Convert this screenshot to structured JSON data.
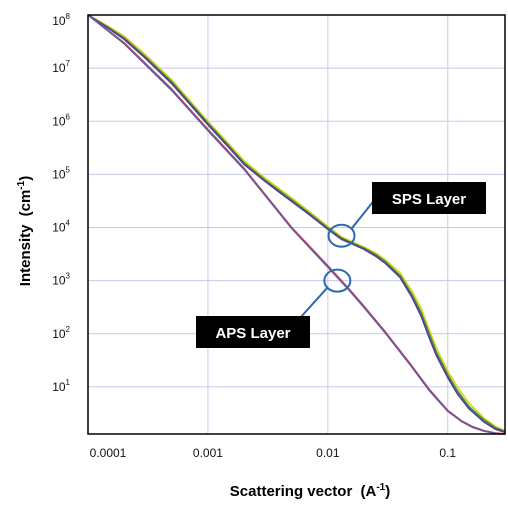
{
  "chart_data": {
    "type": "line",
    "title": "",
    "xlabel": "Scattering vector",
    "xlabel_unit_base": "(A",
    "xlabel_unit_exp": "-1",
    "xlabel_unit_close": ")",
    "ylabel": "Intensity",
    "ylabel_unit_base": "(cm",
    "ylabel_unit_exp": "-1",
    "ylabel_unit_close": ")",
    "xscale": "log",
    "yscale": "log",
    "xlim": [
      0.0001,
      0.3
    ],
    "ylim": [
      1.3,
      100000000
    ],
    "grid": true,
    "x_ticks": [
      "0.0001",
      "0.001",
      "0.01",
      "0.1"
    ],
    "y_ticks": [
      {
        "base": "10",
        "exp": "8"
      },
      {
        "base": "10",
        "exp": "7"
      },
      {
        "base": "10",
        "exp": "6"
      },
      {
        "base": "10",
        "exp": "5"
      },
      {
        "base": "10",
        "exp": "4"
      },
      {
        "base": "10",
        "exp": "3"
      },
      {
        "base": "10",
        "exp": "2"
      },
      {
        "base": "10",
        "exp": "1"
      }
    ],
    "series": [
      {
        "color": "#e8d21c",
        "x": [
          0.0001,
          0.00015,
          0.0002,
          0.0003,
          0.0005,
          0.0007,
          0.001,
          0.0015,
          0.002,
          0.003,
          0.004,
          0.005,
          0.007,
          0.01,
          0.013,
          0.016,
          0.02,
          0.025,
          0.03,
          0.04,
          0.05,
          0.06,
          0.07,
          0.08,
          0.1,
          0.12,
          0.15,
          0.2,
          0.25,
          0.3
        ],
        "y": [
          100000000,
          60000000,
          40000000,
          18000000,
          6000000,
          2500000,
          1000000,
          370000,
          180000,
          85000,
          52000,
          36000,
          20000,
          10500,
          6700,
          5400,
          4300,
          3300,
          2500,
          1400,
          650,
          300,
          120,
          55,
          20,
          10,
          5,
          2.6,
          1.8,
          1.5
        ]
      },
      {
        "color": "#2e9b3c",
        "x": [
          0.0001,
          0.00015,
          0.0002,
          0.0003,
          0.0005,
          0.0007,
          0.001,
          0.0015,
          0.002,
          0.003,
          0.004,
          0.005,
          0.007,
          0.01,
          0.013,
          0.016,
          0.02,
          0.025,
          0.03,
          0.04,
          0.05,
          0.06,
          0.07,
          0.08,
          0.1,
          0.12,
          0.15,
          0.2,
          0.25,
          0.3
        ],
        "y": [
          100000000,
          57000000,
          37000000,
          16500000,
          5500000,
          2300000,
          920000,
          340000,
          165000,
          78000,
          48000,
          33000,
          18500,
          9800,
          6300,
          5100,
          4100,
          3100,
          2300,
          1250,
          560,
          250,
          100,
          46,
          17,
          8.5,
          4.3,
          2.4,
          1.7,
          1.45
        ]
      },
      {
        "color": "#5a3d9a",
        "x": [
          0.0001,
          0.00015,
          0.0002,
          0.0003,
          0.0005,
          0.0007,
          0.001,
          0.0015,
          0.002,
          0.003,
          0.004,
          0.005,
          0.007,
          0.01,
          0.013,
          0.016,
          0.02,
          0.025,
          0.03,
          0.04,
          0.05,
          0.06,
          0.07,
          0.08,
          0.1,
          0.12,
          0.15,
          0.2,
          0.25,
          0.3
        ],
        "y": [
          100000000,
          55000000,
          35000000,
          15500000,
          5100000,
          2150000,
          860000,
          320000,
          155000,
          74000,
          45000,
          31000,
          17500,
          9300,
          6000,
          4900,
          3900,
          2900,
          2150,
          1150,
          500,
          215,
          85,
          40,
          15,
          7.5,
          3.9,
          2.2,
          1.6,
          1.4
        ]
      },
      {
        "color": "#d04050",
        "x": [
          0.0001,
          0.0002,
          0.0005,
          0.001,
          0.002,
          0.005,
          0.01,
          0.015,
          0.02,
          0.03,
          0.05,
          0.07,
          0.1,
          0.13,
          0.16,
          0.2,
          0.25,
          0.3
        ],
        "y": [
          100000000,
          30000000,
          4000000,
          700000,
          130000,
          10000,
          1900,
          700,
          330,
          110,
          25,
          9,
          3.6,
          2.3,
          1.8,
          1.5,
          1.35,
          1.3
        ]
      },
      {
        "color": "#6a5a9a",
        "x": [
          0.0001,
          0.0002,
          0.0005,
          0.001,
          0.002,
          0.005,
          0.01,
          0.015,
          0.02,
          0.03,
          0.05,
          0.07,
          0.1,
          0.13,
          0.16,
          0.2,
          0.25,
          0.3
        ],
        "y": [
          100000000,
          29000000,
          3800000,
          670000,
          125000,
          9600,
          1800,
          670,
          315,
          105,
          24,
          8.6,
          3.5,
          2.25,
          1.75,
          1.48,
          1.33,
          1.3
        ]
      }
    ],
    "annotations": [
      {
        "text": "SPS Layer",
        "x": 0.013,
        "y": 7000
      },
      {
        "text": "APS Layer",
        "x": 0.012,
        "y": 1000
      }
    ]
  }
}
